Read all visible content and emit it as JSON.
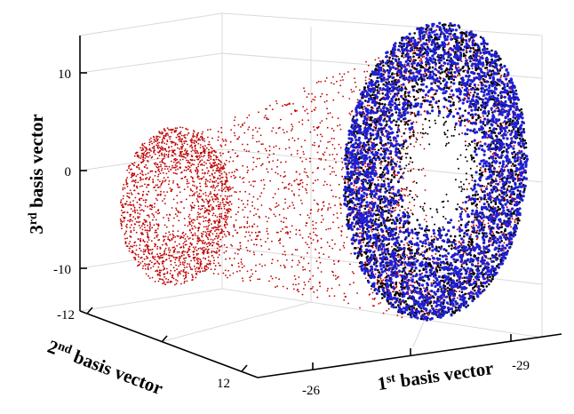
{
  "chart_data": {
    "type": "scatter",
    "title": "",
    "grid": true,
    "axes": {
      "x": {
        "label": {
          "base": "1",
          "sup": "st",
          "rest": " basis vector"
        },
        "ticks": [
          -26,
          -29
        ]
      },
      "y": {
        "label": {
          "base": "2",
          "sup": "nd",
          "rest": " basis vector"
        },
        "ticks": [
          -12,
          12
        ]
      },
      "z": {
        "label": {
          "base": "3",
          "sup": "rd",
          "rest": " basis vector"
        },
        "ticks": [
          10,
          0,
          -10
        ],
        "zlim": [
          -14,
          14
        ]
      }
    },
    "series": [
      {
        "color": "#c00000",
        "marker": "dot",
        "shape": "large torus connected to a small torus by a cloud of points"
      },
      {
        "color": "#1f1fd6",
        "marker": "dot",
        "shape": "torus overlapping the large red torus"
      },
      {
        "color": "#000000",
        "marker": "dot",
        "shape": "torus overlapping the large red torus"
      }
    ]
  }
}
